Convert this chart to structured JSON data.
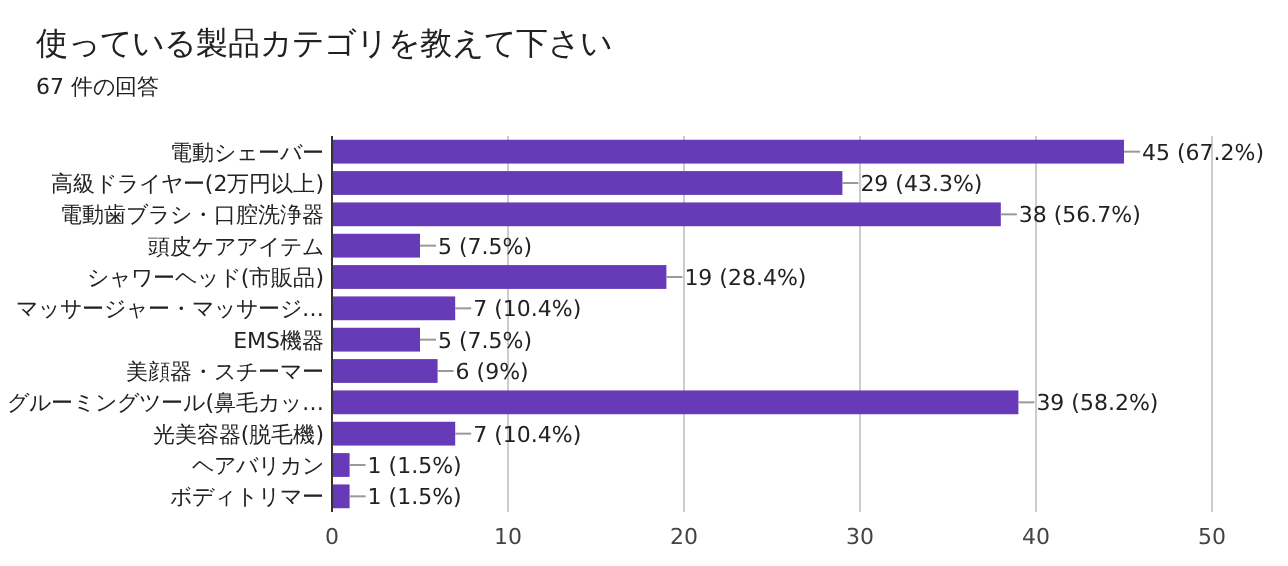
{
  "chart_data": {
    "type": "bar",
    "orientation": "horizontal",
    "title": "使っている製品カテゴリを教えて下さい",
    "subtitle": "67 件の回答",
    "categories": [
      "電動シェーバー",
      "高級ドライヤー(2万円以上)",
      "電動歯ブラシ・口腔洗浄器",
      "頭皮ケアアイテム",
      "シャワーヘッド(市販品)",
      "マッサージャー・マッサージ…",
      "EMS機器",
      "美顔器・スチーマー",
      "グルーミングツール(鼻毛カッ…",
      "光美容器(脱毛機)",
      "ヘアバリカン",
      "ボディトリマー"
    ],
    "values": [
      45,
      29,
      38,
      5,
      19,
      7,
      5,
      6,
      39,
      7,
      1,
      1
    ],
    "value_labels": [
      "45 (67.2%)",
      "29 (43.3%)",
      "38 (56.7%)",
      "5 (7.5%)",
      "19 (28.4%)",
      "7 (10.4%)",
      "5 (7.5%)",
      "6 (9%)",
      "39 (58.2%)",
      "7 (10.4%)",
      "1 (1.5%)",
      "1 (1.5%)"
    ],
    "color": "#673ab7",
    "xlim": [
      0,
      50
    ],
    "xticks": [
      0,
      10,
      20,
      30,
      40,
      50
    ],
    "grid": "x"
  }
}
